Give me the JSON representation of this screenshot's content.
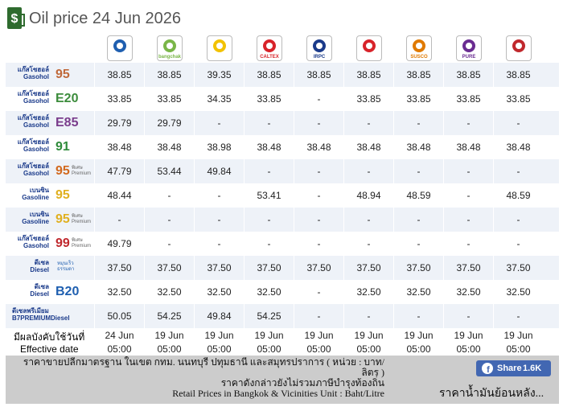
{
  "header": {
    "title": "Oil price 24 Jun 2026"
  },
  "brands": [
    null,
    "bangchak",
    null,
    "CALTEX",
    "IRPC",
    null,
    "SUSCO",
    "PURE",
    null
  ],
  "table": {
    "rows": [
      {
        "thai": "แก๊สโซฮอล์",
        "english": "Gasohol",
        "grade": "95",
        "color": "#c0693a",
        "prices": [
          "38.85",
          "38.85",
          "39.35",
          "38.85",
          "38.85",
          "38.85",
          "38.85",
          "38.85",
          "38.85"
        ]
      },
      {
        "thai": "แก๊สโซฮอล์",
        "english": "Gasohol",
        "grade": "E20",
        "color": "#3c8c3c",
        "prices": [
          "33.85",
          "33.85",
          "34.35",
          "33.85",
          "-",
          "33.85",
          "33.85",
          "33.85",
          "33.85"
        ]
      },
      {
        "thai": "แก๊สโซฮอล์",
        "english": "Gasohol",
        "grade": "E85",
        "color": "#7a3c8c",
        "prices": [
          "29.79",
          "29.79",
          "-",
          "-",
          "-",
          "-",
          "-",
          "-",
          "-"
        ]
      },
      {
        "thai": "แก๊สโซฮอล์",
        "english": "Gasohol",
        "grade": "91",
        "color": "#2e8b3a",
        "prices": [
          "38.48",
          "38.48",
          "38.98",
          "38.48",
          "38.48",
          "38.48",
          "38.48",
          "38.48",
          "38.48"
        ]
      },
      {
        "thai": "แก๊สโซฮอล์",
        "english": "Gasohol",
        "grade": "95",
        "premium_thai": "พิเศษ",
        "premium_english": "Premium",
        "color": "#d2691e",
        "prices": [
          "47.79",
          "53.44",
          "49.84",
          "-",
          "-",
          "-",
          "-",
          "-",
          "-"
        ]
      },
      {
        "thai": "เบนซิน",
        "english": "Gasoline",
        "grade": "95",
        "color": "#e0b020",
        "prices": [
          "48.44",
          "-",
          "-",
          "53.41",
          "-",
          "48.94",
          "48.59",
          "-",
          "48.59"
        ]
      },
      {
        "thai": "เบนซิน",
        "english": "Gasoline",
        "grade": "95",
        "premium_thai": "พิเศษ",
        "premium_english": "Premium",
        "color": "#e0b020",
        "prices": [
          "-",
          "-",
          "-",
          "-",
          "-",
          "-",
          "-",
          "-",
          "-"
        ]
      },
      {
        "thai": "แก๊สโซฮอล์",
        "english": "Gasohol",
        "grade": "99",
        "premium_thai": "พิเศษ",
        "premium_english": "Premium",
        "color": "#c0282d",
        "prices": [
          "49.79",
          "-",
          "-",
          "-",
          "-",
          "-",
          "-",
          "-",
          "-"
        ]
      },
      {
        "thai": "ดีเซล",
        "english": "Diesel",
        "note": [
          "หมุนเร็ว",
          "ธรรมดา"
        ],
        "color": "#1f5fb0",
        "prices": [
          "37.50",
          "37.50",
          "37.50",
          "37.50",
          "37.50",
          "37.50",
          "37.50",
          "37.50",
          "37.50"
        ]
      },
      {
        "thai": "ดีเซล",
        "english": "Diesel",
        "grade": "B20",
        "color": "#1f5fb0",
        "prices": [
          "32.50",
          "32.50",
          "32.50",
          "32.50",
          "-",
          "32.50",
          "32.50",
          "32.50",
          "32.50"
        ]
      },
      {
        "thai": "ดีเซลพรีเมียม",
        "english": "B7PREMIUMDiesel",
        "color": "#1f5fb0",
        "prices": [
          "50.05",
          "54.25",
          "49.84",
          "54.25",
          "-",
          "-",
          "-",
          "-",
          "-"
        ]
      }
    ],
    "effective": {
      "label_thai": "มีผลบังคับใช้วันที่",
      "label_english": "Effective date",
      "dates": [
        "24 Jun",
        "19 Jun",
        "19 Jun",
        "19 Jun",
        "19 Jun",
        "19 Jun",
        "19 Jun",
        "19 Jun",
        "19 Jun"
      ],
      "times": [
        "05:00",
        "05:00",
        "05:00",
        "05:00",
        "05:00",
        "05:00",
        "05:00",
        "05:00",
        "05:00"
      ]
    }
  },
  "footer": {
    "lines": [
      "ราคาขายปลีกมาตรฐาน ในเขต กทม. นนทบุรี ปทุมธานี และสมุทรปราการ ( หน่วย : บาท/ลิตร )",
      "ราคาดังกล่าวยังไม่รวมภาษีบำรุงท้องถิ่น",
      "Retail Prices in Bangkok & Vicinities Unit : Baht/Litre"
    ],
    "share": "Share",
    "share_count": "1.6K",
    "history_link": "ราคาน้ำมันย้อนหลัง..."
  }
}
